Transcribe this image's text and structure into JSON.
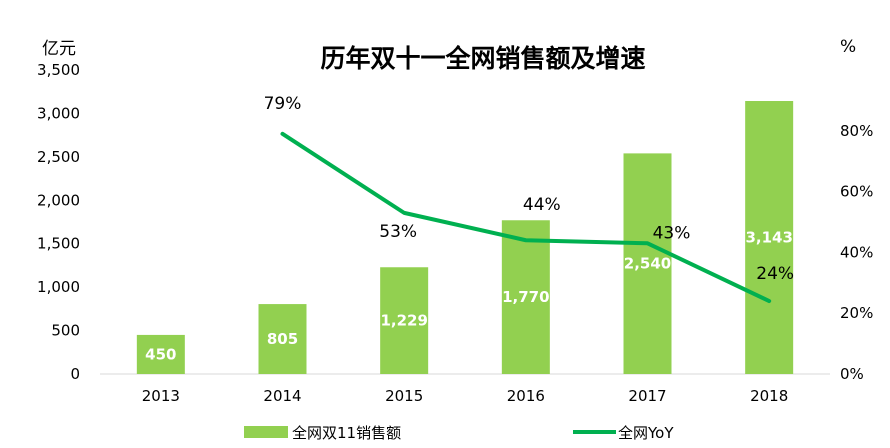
{
  "chart_data": {
    "type": "bar",
    "title": "历年双十一全网销售额及增速",
    "categories": [
      "2013",
      "2014",
      "2015",
      "2016",
      "2017",
      "2018"
    ],
    "series": [
      {
        "name": "全网双11销售额",
        "type": "bar",
        "axis": "left",
        "color": "#92D050",
        "values": [
          450,
          805,
          1229,
          1770,
          2540,
          3143
        ],
        "labels": [
          "450",
          "805",
          "1,229",
          "1,770",
          "2,540",
          "3,143"
        ]
      },
      {
        "name": "全网YoY",
        "type": "line",
        "axis": "right",
        "color": "#00B050",
        "values": [
          null,
          79,
          53,
          44,
          43,
          24
        ],
        "labels": [
          "",
          "79%",
          "53%",
          "44%",
          "43%",
          "24%"
        ]
      }
    ],
    "y_left": {
      "label": "亿元",
      "range": [
        0,
        3500
      ],
      "ticks": [
        0,
        500,
        1000,
        1500,
        2000,
        2500,
        3000,
        3500
      ],
      "tick_labels": [
        "0",
        "500",
        "1,000",
        "1,500",
        "2,000",
        "2,500",
        "3,000",
        "3,500"
      ]
    },
    "y_right": {
      "label": "%",
      "range": [
        0,
        100
      ],
      "ticks": [
        0,
        20,
        40,
        60,
        80
      ],
      "tick_labels": [
        "0%",
        "20%",
        "40%",
        "60%",
        "80%"
      ]
    },
    "grid": false,
    "legend_position": "bottom"
  }
}
